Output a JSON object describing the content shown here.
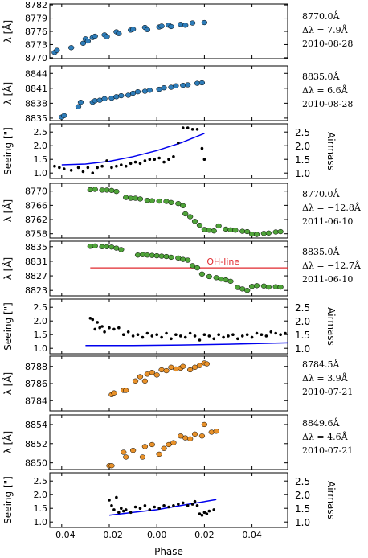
{
  "xaxis": {
    "label": "Phase",
    "ticks": [
      "−0.04",
      "−0.02",
      "0.00",
      "0.02",
      "0.04"
    ],
    "tick_values": [
      -0.04,
      -0.02,
      0.0,
      0.02,
      0.04
    ],
    "xlim": [
      -0.045,
      0.055
    ]
  },
  "colors": {
    "blue_points": "#2e7cb8",
    "green_points": "#4fa339",
    "orange_points": "#e8912a",
    "seeing_points": "#000000",
    "airmass_line": "#0000ee",
    "oh_line": "#e0282e"
  },
  "side_labels": [
    {
      "line": "8770.0Å",
      "delta": "Δλ = 7.9Å",
      "date": "2010-08-28"
    },
    {
      "line": "8835.0Å",
      "delta": "Δλ = 6.6Å",
      "date": "2010-08-28"
    },
    {
      "line": "8770.0Å",
      "delta": "Δλ = −12.8Å",
      "date": "2011-06-10"
    },
    {
      "line": "8835.0Å",
      "delta": "Δλ = −12.7Å",
      "date": "2011-06-10"
    },
    {
      "line": "8784.5Å",
      "delta": "Δλ = 3.9Å",
      "date": "2010-07-21"
    },
    {
      "line": "8849.6Å",
      "delta": "Δλ = 4.6Å",
      "date": "2010-07-21"
    }
  ],
  "chart_data": [
    {
      "type": "scatter",
      "ylabel": "λ [Å]",
      "ylim": [
        8769.8,
        8782.2
      ],
      "yticks": [
        "8770",
        "8773",
        "8776",
        "8779",
        "8782"
      ],
      "ytick_values": [
        8770,
        8773,
        8776,
        8779,
        8782
      ],
      "color": "blue",
      "x": [
        -0.043,
        -0.042,
        -0.036,
        -0.031,
        -0.03,
        -0.029,
        -0.027,
        -0.026,
        -0.022,
        -0.021,
        -0.017,
        -0.016,
        -0.011,
        -0.01,
        -0.005,
        -0.004,
        0.001,
        0.002,
        0.005,
        0.006,
        0.01,
        0.012,
        0.015,
        0.02
      ],
      "y": [
        8771.2,
        8771.7,
        8772.3,
        8773.3,
        8774.3,
        8773.8,
        8774.6,
        8774.9,
        8775.2,
        8774.8,
        8775.9,
        8775.5,
        8776.3,
        8776.5,
        8776.9,
        8776.4,
        8777.0,
        8777.2,
        8777.4,
        8777.1,
        8777.6,
        8777.4,
        8777.9,
        8778.0
      ]
    },
    {
      "type": "scatter",
      "ylabel": "λ [Å]",
      "ylim": [
        8834.5,
        8845.5
      ],
      "yticks": [
        "8835",
        "8838",
        "8841",
        "8844"
      ],
      "ytick_values": [
        8835,
        8838,
        8841,
        8844
      ],
      "color": "blue",
      "x": [
        -0.04,
        -0.039,
        -0.033,
        -0.032,
        -0.027,
        -0.026,
        -0.024,
        -0.022,
        -0.019,
        -0.017,
        -0.015,
        -0.012,
        -0.01,
        -0.008,
        -0.005,
        -0.003,
        0.001,
        0.003,
        0.006,
        0.008,
        0.011,
        0.013,
        0.017,
        0.019
      ],
      "y": [
        8835.2,
        8835.5,
        8837.3,
        8838.2,
        8838.2,
        8838.5,
        8838.6,
        8838.9,
        8839.0,
        8839.3,
        8839.5,
        8839.6,
        8840.0,
        8840.3,
        8840.4,
        8840.6,
        8840.8,
        8841.1,
        8841.2,
        8841.5,
        8841.6,
        8841.7,
        8842.0,
        8842.1
      ]
    },
    {
      "type": "scatter",
      "ylabel": "Seeing [\"]",
      "y2label": "Airmass",
      "ylim": [
        0.8,
        2.8
      ],
      "yticks": [
        "1.0",
        "1.5",
        "2.0",
        "2.5"
      ],
      "ytick_values": [
        1.0,
        1.5,
        2.0,
        2.5
      ],
      "y2ticks": [
        "1.0",
        "1.5",
        "2.0",
        "2.5"
      ],
      "seeing": {
        "x": [
          -0.043,
          -0.041,
          -0.039,
          -0.036,
          -0.033,
          -0.031,
          -0.029,
          -0.027,
          -0.025,
          -0.023,
          -0.021,
          -0.019,
          -0.017,
          -0.015,
          -0.013,
          -0.011,
          -0.009,
          -0.007,
          -0.005,
          -0.003,
          -0.001,
          0.001,
          0.003,
          0.005,
          0.007,
          0.009,
          0.011,
          0.013,
          0.015,
          0.017,
          0.019,
          0.02
        ],
        "y": [
          1.25,
          1.2,
          1.15,
          1.1,
          1.2,
          1.05,
          1.2,
          1.0,
          1.2,
          1.25,
          1.45,
          1.2,
          1.25,
          1.3,
          1.25,
          1.35,
          1.4,
          1.35,
          1.45,
          1.5,
          1.5,
          1.55,
          1.4,
          1.5,
          1.6,
          2.1,
          2.65,
          2.65,
          2.6,
          2.6,
          1.9,
          1.5
        ]
      },
      "airmass": {
        "x": [
          -0.04,
          -0.03,
          -0.02,
          -0.01,
          0.0,
          0.01,
          0.02
        ],
        "y": [
          1.3,
          1.33,
          1.43,
          1.6,
          1.82,
          2.1,
          2.45
        ]
      }
    },
    {
      "type": "scatter",
      "ylabel": "λ [Å]",
      "ylim": [
        8756.8,
        8772.2
      ],
      "yticks": [
        "8758",
        "8762",
        "8766",
        "8770"
      ],
      "ytick_values": [
        8758,
        8762,
        8766,
        8770
      ],
      "color": "green",
      "x": [
        -0.028,
        -0.026,
        -0.023,
        -0.021,
        -0.019,
        -0.017,
        -0.013,
        -0.011,
        -0.009,
        -0.007,
        -0.004,
        -0.002,
        0.001,
        0.004,
        0.006,
        0.009,
        0.011,
        0.012,
        0.014,
        0.016,
        0.018,
        0.02,
        0.022,
        0.024,
        0.026,
        0.029,
        0.031,
        0.033,
        0.036,
        0.038,
        0.04,
        0.042,
        0.045,
        0.047,
        0.05,
        0.052
      ],
      "y": [
        8770.4,
        8770.5,
        8770.3,
        8770.3,
        8770.2,
        8769.9,
        8768.2,
        8768.0,
        8768.0,
        8767.8,
        8767.4,
        8767.3,
        8767.2,
        8767.1,
        8766.8,
        8766.5,
        8765.9,
        8763.6,
        8762.8,
        8761.5,
        8760.4,
        8759.2,
        8759.0,
        8758.8,
        8760.2,
        8759.3,
        8759.1,
        8759.0,
        8758.7,
        8758.6,
        8757.9,
        8757.8,
        8758.1,
        8758.2,
        8758.5,
        8758.6
      ]
    },
    {
      "type": "scatter",
      "ylabel": "λ [Å]",
      "ylim": [
        8821.5,
        8836.5
      ],
      "yticks": [
        "8823",
        "8827",
        "8831",
        "8835"
      ],
      "ytick_values": [
        8823,
        8827,
        8831,
        8835
      ],
      "color": "green",
      "oh_line": {
        "label": "OH-line",
        "y": 8829.2,
        "x": [
          -0.028,
          0.055
        ]
      },
      "x": [
        -0.028,
        -0.026,
        -0.023,
        -0.021,
        -0.019,
        -0.017,
        -0.015,
        -0.008,
        -0.006,
        -0.004,
        -0.002,
        0.0,
        0.002,
        0.004,
        0.006,
        0.009,
        0.011,
        0.013,
        0.015,
        0.017,
        0.019,
        0.022,
        0.025,
        0.027,
        0.029,
        0.031,
        0.034,
        0.036,
        0.038,
        0.04,
        0.042,
        0.045,
        0.047,
        0.05,
        0.052
      ],
      "y": [
        8835.1,
        8835.2,
        8835.0,
        8835.0,
        8834.9,
        8834.6,
        8834.2,
        8832.7,
        8832.8,
        8832.7,
        8832.6,
        8832.5,
        8832.4,
        8832.3,
        8832.1,
        8831.9,
        8831.5,
        8831.3,
        8829.8,
        8829.2,
        8827.5,
        8826.8,
        8826.5,
        8826.1,
        8825.9,
        8825.5,
        8823.8,
        8823.4,
        8823.0,
        8824.1,
        8824.3,
        8824.2,
        8823.9,
        8824.0,
        8823.9
      ]
    },
    {
      "type": "scatter",
      "ylabel": "Seeing [\"]",
      "y2label": "Airmass",
      "ylim": [
        0.8,
        2.8
      ],
      "yticks": [
        "1.0",
        "1.5",
        "2.0",
        "2.5"
      ],
      "ytick_values": [
        1.0,
        1.5,
        2.0,
        2.5
      ],
      "y2ticks": [
        "1.0",
        "1.5",
        "2.0",
        "2.5"
      ],
      "seeing": {
        "x": [
          -0.028,
          -0.027,
          -0.026,
          -0.025,
          -0.024,
          -0.023,
          -0.022,
          -0.02,
          -0.018,
          -0.016,
          -0.014,
          -0.012,
          -0.01,
          -0.008,
          -0.006,
          -0.004,
          -0.002,
          0.0,
          0.002,
          0.004,
          0.006,
          0.008,
          0.01,
          0.012,
          0.014,
          0.016,
          0.018,
          0.02,
          0.022,
          0.024,
          0.026,
          0.028,
          0.03,
          0.032,
          0.034,
          0.036,
          0.038,
          0.04,
          0.042,
          0.044,
          0.046,
          0.048,
          0.05,
          0.052,
          0.054
        ],
        "y": [
          2.1,
          2.05,
          1.7,
          1.95,
          1.75,
          1.8,
          1.6,
          1.75,
          1.7,
          1.75,
          1.5,
          1.6,
          1.45,
          1.5,
          1.4,
          1.55,
          1.45,
          1.5,
          1.4,
          1.55,
          1.35,
          1.5,
          1.45,
          1.4,
          1.55,
          1.45,
          1.3,
          1.5,
          1.45,
          1.35,
          1.5,
          1.4,
          1.45,
          1.5,
          1.35,
          1.45,
          1.5,
          1.4,
          1.55,
          1.5,
          1.45,
          1.6,
          1.55,
          1.5,
          1.55
        ]
      },
      "airmass": {
        "x": [
          -0.03,
          -0.01,
          0.01,
          0.03,
          0.055
        ],
        "y": [
          1.1,
          1.1,
          1.12,
          1.15,
          1.2
        ]
      }
    },
    {
      "type": "scatter",
      "ylabel": "λ [Å]",
      "ylim": [
        8782.8,
        8789.2
      ],
      "yticks": [
        "8784",
        "8786",
        "8788"
      ],
      "ytick_values": [
        8784,
        8786,
        8788
      ],
      "color": "orange",
      "x": [
        -0.019,
        -0.018,
        -0.014,
        -0.013,
        -0.009,
        -0.007,
        -0.005,
        -0.004,
        -0.002,
        0.0,
        0.002,
        0.004,
        0.006,
        0.008,
        0.01,
        0.011,
        0.014,
        0.016,
        0.018,
        0.02,
        0.021
      ],
      "y": [
        8784.7,
        8784.9,
        8785.2,
        8785.2,
        8786.3,
        8786.8,
        8786.3,
        8787.1,
        8787.3,
        8787.0,
        8787.6,
        8787.5,
        8787.9,
        8787.7,
        8787.8,
        8788.0,
        8787.6,
        8787.9,
        8788.1,
        8788.4,
        8788.3
      ]
    },
    {
      "type": "scatter",
      "ylabel": "λ [Å]",
      "ylim": [
        8849.3,
        8855.0
      ],
      "yticks": [
        "8850",
        "8852",
        "8854"
      ],
      "ytick_values": [
        8850,
        8852,
        8854
      ],
      "color": "orange",
      "x": [
        -0.02,
        -0.019,
        -0.014,
        -0.013,
        -0.01,
        -0.006,
        -0.005,
        -0.002,
        0.001,
        0.003,
        0.005,
        0.007,
        0.01,
        0.012,
        0.014,
        0.016,
        0.019,
        0.02,
        0.023,
        0.025
      ],
      "y": [
        8849.7,
        8849.7,
        8851.1,
        8850.6,
        8851.3,
        8850.6,
        8851.7,
        8851.9,
        8850.9,
        8851.5,
        8851.9,
        8852.1,
        8852.8,
        8852.6,
        8852.5,
        8853.0,
        8852.8,
        8854.0,
        8853.2,
        8853.3
      ]
    },
    {
      "type": "scatter",
      "ylabel": "Seeing [\"]",
      "y2label": "Airmass",
      "ylim": [
        0.8,
        2.8
      ],
      "yticks": [
        "1.0",
        "1.5",
        "2.0",
        "2.5"
      ],
      "ytick_values": [
        1.0,
        1.5,
        2.0,
        2.5
      ],
      "y2ticks": [
        "1.0",
        "1.5",
        "2.0",
        "2.5"
      ],
      "seeing": {
        "x": [
          -0.02,
          -0.019,
          -0.018,
          -0.017,
          -0.016,
          -0.015,
          -0.014,
          -0.013,
          -0.011,
          -0.009,
          -0.007,
          -0.005,
          -0.003,
          -0.001,
          0.001,
          0.003,
          0.005,
          0.007,
          0.009,
          0.011,
          0.013,
          0.015,
          0.016,
          0.017,
          0.018,
          0.019,
          0.02,
          0.021,
          0.022,
          0.024
        ],
        "y": [
          1.8,
          1.6,
          1.45,
          1.9,
          1.35,
          1.5,
          1.4,
          1.45,
          1.35,
          1.55,
          1.5,
          1.6,
          1.45,
          1.55,
          1.5,
          1.6,
          1.55,
          1.6,
          1.65,
          1.7,
          1.6,
          1.65,
          1.75,
          1.6,
          1.3,
          1.25,
          1.35,
          1.3,
          1.4,
          1.45
        ]
      },
      "airmass": {
        "x": [
          -0.02,
          -0.01,
          0.0,
          0.01,
          0.025
        ],
        "y": [
          1.25,
          1.35,
          1.45,
          1.6,
          1.82
        ]
      }
    }
  ]
}
